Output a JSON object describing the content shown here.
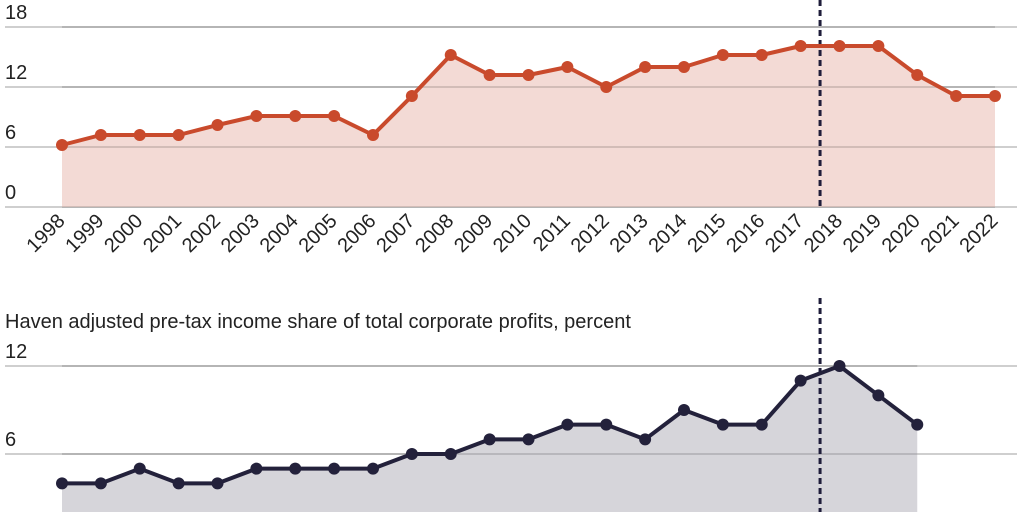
{
  "chart_data": [
    {
      "type": "area",
      "title": "",
      "xlabel": "",
      "ylabel": "",
      "x": [
        "1998",
        "1999",
        "2000",
        "2001",
        "2002",
        "2003",
        "2004",
        "2005",
        "2006",
        "2007",
        "2008",
        "2009",
        "2010",
        "2011",
        "2012",
        "2013",
        "2014",
        "2015",
        "2016",
        "2017",
        "2018",
        "2019",
        "2020",
        "2021",
        "2022"
      ],
      "values": [
        6.2,
        7.2,
        7.2,
        7.2,
        8.2,
        9.1,
        9.1,
        9.1,
        7.2,
        11.1,
        15.2,
        13.2,
        13.2,
        14,
        12,
        14,
        14,
        15.2,
        15.2,
        16.1,
        16.1,
        16.1,
        13.2,
        11.1,
        11.1
      ],
      "ylim": [
        0,
        18
      ],
      "yticks": [
        "0",
        "6",
        "12",
        "18"
      ],
      "grid": true,
      "reference_line_x": 2017.5,
      "colors": {
        "line": "#c94a2c",
        "fill": "#f2d6d0",
        "reference": "#1f1d3a"
      }
    },
    {
      "type": "area",
      "title": "Haven adjusted pre-tax income share of total corporate profits, percent",
      "xlabel": "",
      "ylabel": "",
      "x": [
        "1998",
        "1999",
        "2000",
        "2001",
        "2002",
        "2003",
        "2004",
        "2005",
        "2006",
        "2007",
        "2008",
        "2009",
        "2010",
        "2011",
        "2012",
        "2013",
        "2014",
        "2015",
        "2016",
        "2017",
        "2018",
        "2019",
        "2020"
      ],
      "values": [
        4,
        4,
        5,
        4,
        4,
        5,
        5,
        5,
        5,
        6,
        6,
        7,
        7,
        8,
        8,
        7,
        9,
        8,
        8,
        11,
        12,
        10,
        8
      ],
      "ylim": [
        0,
        12
      ],
      "yticks": [
        "6",
        "12"
      ],
      "grid": true,
      "reference_line_x": 2017.5,
      "colors": {
        "line": "#23213b",
        "fill": "#d1d0d6",
        "reference": "#1f1d3a"
      }
    }
  ]
}
